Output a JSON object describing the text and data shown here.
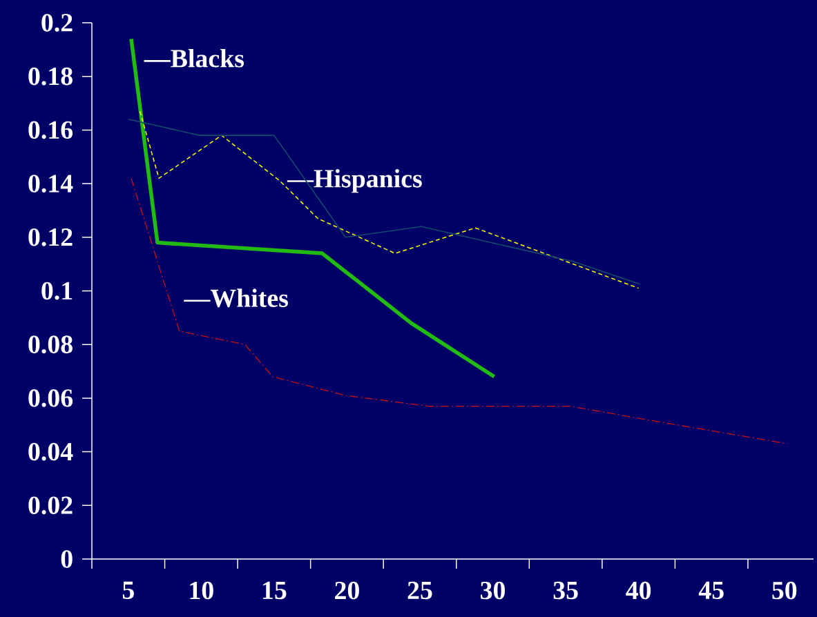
{
  "chart_data": {
    "type": "line",
    "xlim": [
      2.5,
      52
    ],
    "ylim": [
      0,
      0.2
    ],
    "xticks": [
      {
        "value": 2.5,
        "label": null
      },
      5,
      {
        "value": 7.5,
        "label": null
      },
      10,
      {
        "value": 12.5,
        "label": null
      },
      15,
      {
        "value": 17.5,
        "label": null
      },
      20,
      {
        "value": 22.5,
        "label": null
      },
      25,
      {
        "value": 27.5,
        "label": null
      },
      30,
      {
        "value": 32.5,
        "label": null
      },
      35,
      {
        "value": 37.5,
        "label": null
      },
      40,
      {
        "value": 42.5,
        "label": null
      },
      45,
      {
        "value": 47.5,
        "label": null
      },
      50
    ],
    "yticks": [
      0,
      0.02,
      0.04,
      0.06,
      0.08,
      0.1,
      0.12,
      0.14,
      0.16,
      0.18,
      0.2
    ],
    "grid": false,
    "legend": false,
    "marker": "none",
    "series": [
      {
        "name": "—Blacks",
        "color": "#22bb11",
        "line_style": "solid",
        "x": [
          5.2,
          7.0,
          18.3,
          24.4,
          30.1
        ],
        "values": [
          0.194,
          0.118,
          0.114,
          0.088,
          0.068
        ]
      },
      {
        "name": "—Hispanics",
        "color": "#ffff00",
        "line_style": "dashed",
        "x": [
          5.8,
          7.1,
          11.4,
          15.4,
          18.0,
          23.3,
          28.8,
          40.0
        ],
        "values": [
          0.167,
          0.142,
          0.158,
          0.141,
          0.127,
          0.114,
          0.1235,
          0.101
        ]
      },
      {
        "color": "#164a6a",
        "line_style": "solid",
        "x": [
          5.0,
          9.9,
          15.0,
          19.9,
          25.1,
          35.5,
          40.1
        ],
        "values": [
          0.164,
          0.158,
          0.158,
          0.12,
          0.124,
          0.111,
          0.1025
        ]
      },
      {
        "name": "—Whites",
        "color": "#cc1111",
        "line_style": "dashdot",
        "x": [
          5.2,
          8.5,
          13.0,
          14.9,
          19.9,
          25.6,
          35.3,
          40.0,
          50.2
        ],
        "values": [
          0.142,
          0.085,
          0.08,
          0.068,
          0.061,
          0.057,
          0.057,
          0.0525,
          0.043
        ]
      }
    ]
  }
}
